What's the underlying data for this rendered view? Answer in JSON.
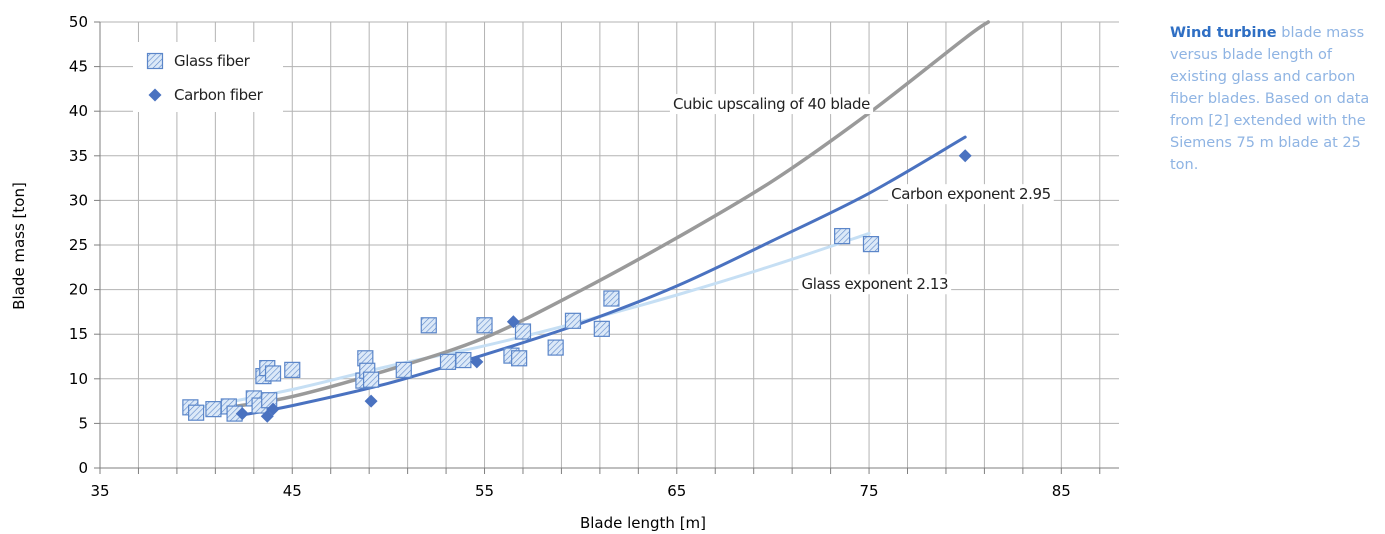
{
  "caption": {
    "highlight": "Wind turbine",
    "text": " blade mass versus blade length of existing glass and carbon fiber blades. Based on data from [2] extended with the Siemens 75 m blade at 25 ton."
  },
  "colors": {
    "grid": "#b3b3b3",
    "axis": "#7f7f7f",
    "cubic": "#9a9a9a",
    "carbon": "#4a72c0",
    "glass": "#c6dff4",
    "glass_marker_stroke": "#5b86c9",
    "glass_marker_fill": "#dce9f8"
  },
  "chart_data": {
    "type": "scatter",
    "xlabel": "Blade length [m]",
    "ylabel": "Blade mass [ton]",
    "xlim": [
      35,
      88
    ],
    "ylim": [
      0,
      50
    ],
    "x_ticks": [
      35,
      45,
      55,
      65,
      75,
      85
    ],
    "y_ticks": [
      0,
      5,
      10,
      15,
      20,
      25,
      30,
      35,
      40,
      45,
      50
    ],
    "grid": true,
    "legend_position": "top-left",
    "legend": [
      "Glass fiber",
      "Carbon fiber"
    ],
    "series": [
      {
        "name": "Glass fiber",
        "kind": "points",
        "marker": "hatched-square",
        "points": [
          [
            39.7,
            6.8
          ],
          [
            40.0,
            6.2
          ],
          [
            40.9,
            6.6
          ],
          [
            41.7,
            6.9
          ],
          [
            42.0,
            6.1
          ],
          [
            43.0,
            7.8
          ],
          [
            43.3,
            7.0
          ],
          [
            43.5,
            10.3
          ],
          [
            43.7,
            11.2
          ],
          [
            43.8,
            7.6
          ],
          [
            44.0,
            10.6
          ],
          [
            45.0,
            11.0
          ],
          [
            48.7,
            9.8
          ],
          [
            48.8,
            12.3
          ],
          [
            48.9,
            10.9
          ],
          [
            49.1,
            9.9
          ],
          [
            50.8,
            11.0
          ],
          [
            52.1,
            16.0
          ],
          [
            53.1,
            11.9
          ],
          [
            53.9,
            12.1
          ],
          [
            55.0,
            16.0
          ],
          [
            56.4,
            12.6
          ],
          [
            56.8,
            12.3
          ],
          [
            57.0,
            15.3
          ],
          [
            58.7,
            13.5
          ],
          [
            59.6,
            16.5
          ],
          [
            61.1,
            15.6
          ],
          [
            61.6,
            19.0
          ],
          [
            73.6,
            26.0
          ],
          [
            75.1,
            25.1
          ]
        ]
      },
      {
        "name": "Carbon fiber",
        "kind": "points",
        "marker": "diamond",
        "points": [
          [
            42.4,
            6.1
          ],
          [
            43.7,
            5.8
          ],
          [
            44.0,
            6.6
          ],
          [
            49.1,
            7.5
          ],
          [
            54.6,
            11.9
          ],
          [
            56.5,
            16.4
          ],
          [
            80.0,
            35.0
          ]
        ]
      },
      {
        "name": "Cubic upscaling of 40 blade",
        "kind": "curve",
        "points": [
          [
            42,
            6.9
          ],
          [
            45,
            8.0
          ],
          [
            50,
            11.0
          ],
          [
            55,
            14.6
          ],
          [
            60,
            19.9
          ],
          [
            65,
            25.8
          ],
          [
            70,
            32.2
          ],
          [
            75,
            39.8
          ],
          [
            80,
            48.2
          ],
          [
            81.2,
            50.0
          ]
        ]
      },
      {
        "name": "Carbon exponent 2.95",
        "kind": "curve",
        "points": [
          [
            42,
            5.8
          ],
          [
            45,
            7.0
          ],
          [
            50,
            9.5
          ],
          [
            55,
            12.7
          ],
          [
            60,
            16.2
          ],
          [
            65,
            20.4
          ],
          [
            70,
            25.5
          ],
          [
            75,
            30.8
          ],
          [
            80,
            37.1
          ]
        ]
      },
      {
        "name": "Glass exponent 2.13",
        "kind": "curve",
        "points": [
          [
            40,
            6.7
          ],
          [
            45,
            8.8
          ],
          [
            50,
            11.4
          ],
          [
            55,
            13.7
          ],
          [
            60,
            16.4
          ],
          [
            65,
            19.4
          ],
          [
            70,
            22.7
          ],
          [
            75,
            26.3
          ]
        ]
      }
    ],
    "annotations": [
      {
        "text": "Cubic upscaling of 40 blade",
        "x": 64.8,
        "y": 40.8,
        "anchor": "start"
      },
      {
        "text": "Carbon exponent 2.95",
        "x": 80.3,
        "y": 30.7,
        "anchor": "middle"
      },
      {
        "text": "Glass exponent 2.13",
        "x": 75.3,
        "y": 20.6,
        "anchor": "middle"
      }
    ]
  }
}
